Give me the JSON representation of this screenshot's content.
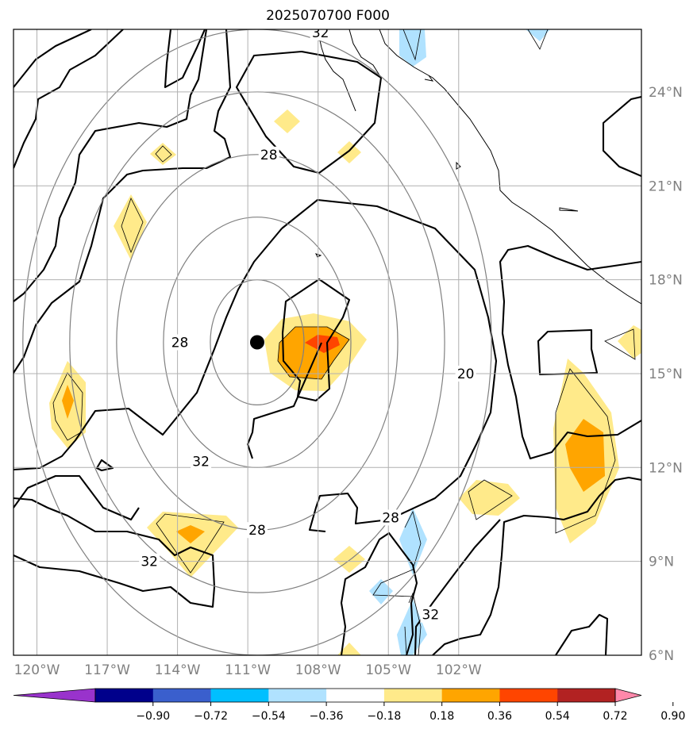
{
  "title": "2025070700 F000",
  "map": {
    "lon_range": [
      -121,
      -94.2
    ],
    "lat_range": [
      6,
      26
    ],
    "lon_ticks": [
      {
        "value": -120,
        "label": "120°W"
      },
      {
        "value": -117,
        "label": "117°W"
      },
      {
        "value": -114,
        "label": "114°W"
      },
      {
        "value": -111,
        "label": "111°W"
      },
      {
        "value": -108,
        "label": "108°W"
      },
      {
        "value": -105,
        "label": "105°W"
      },
      {
        "value": -102,
        "label": "102°W"
      }
    ],
    "lat_ticks": [
      {
        "value": 24,
        "label": "24°N"
      },
      {
        "value": 21,
        "label": "21°N"
      },
      {
        "value": 18,
        "label": "18°N"
      },
      {
        "value": 15,
        "label": "15°N"
      },
      {
        "value": 12,
        "label": "12°N"
      },
      {
        "value": 9,
        "label": "9°N"
      },
      {
        "value": 6,
        "label": "6°N"
      }
    ],
    "storm_center": {
      "lon": -110.6,
      "lat": 16.0
    },
    "range_rings_deg": [
      2,
      4,
      6,
      8,
      10
    ],
    "contour_labels": [
      {
        "text": "28",
        "lon": -110.1,
        "lat": 22.0
      },
      {
        "text": "28",
        "lon": -113.9,
        "lat": 16.0
      },
      {
        "text": "32",
        "lon": -113.0,
        "lat": 12.2
      },
      {
        "text": "28",
        "lon": -110.6,
        "lat": 10.0
      },
      {
        "text": "32",
        "lon": -115.2,
        "lat": 9.0
      },
      {
        "text": "20",
        "lon": -101.7,
        "lat": 15.0
      },
      {
        "text": "28",
        "lon": -104.9,
        "lat": 10.4
      },
      {
        "text": "32",
        "lon": -103.2,
        "lat": 7.3
      },
      {
        "text": "32",
        "lon": -107.9,
        "lat": 25.9
      }
    ]
  },
  "colorbar": {
    "colors": [
      "#9933cc",
      "#00008b",
      "#3a5fcd",
      "#00bfff",
      "#b0e2ff",
      "#ffffff",
      "#ffea8a",
      "#ffa500",
      "#ff4500",
      "#b22222",
      "#ff88aa"
    ],
    "labels": [
      "−0.90",
      "−0.72",
      "−0.54",
      "−0.36",
      "−0.18",
      "0.18",
      "0.36",
      "0.54",
      "0.72",
      "0.90"
    ]
  }
}
